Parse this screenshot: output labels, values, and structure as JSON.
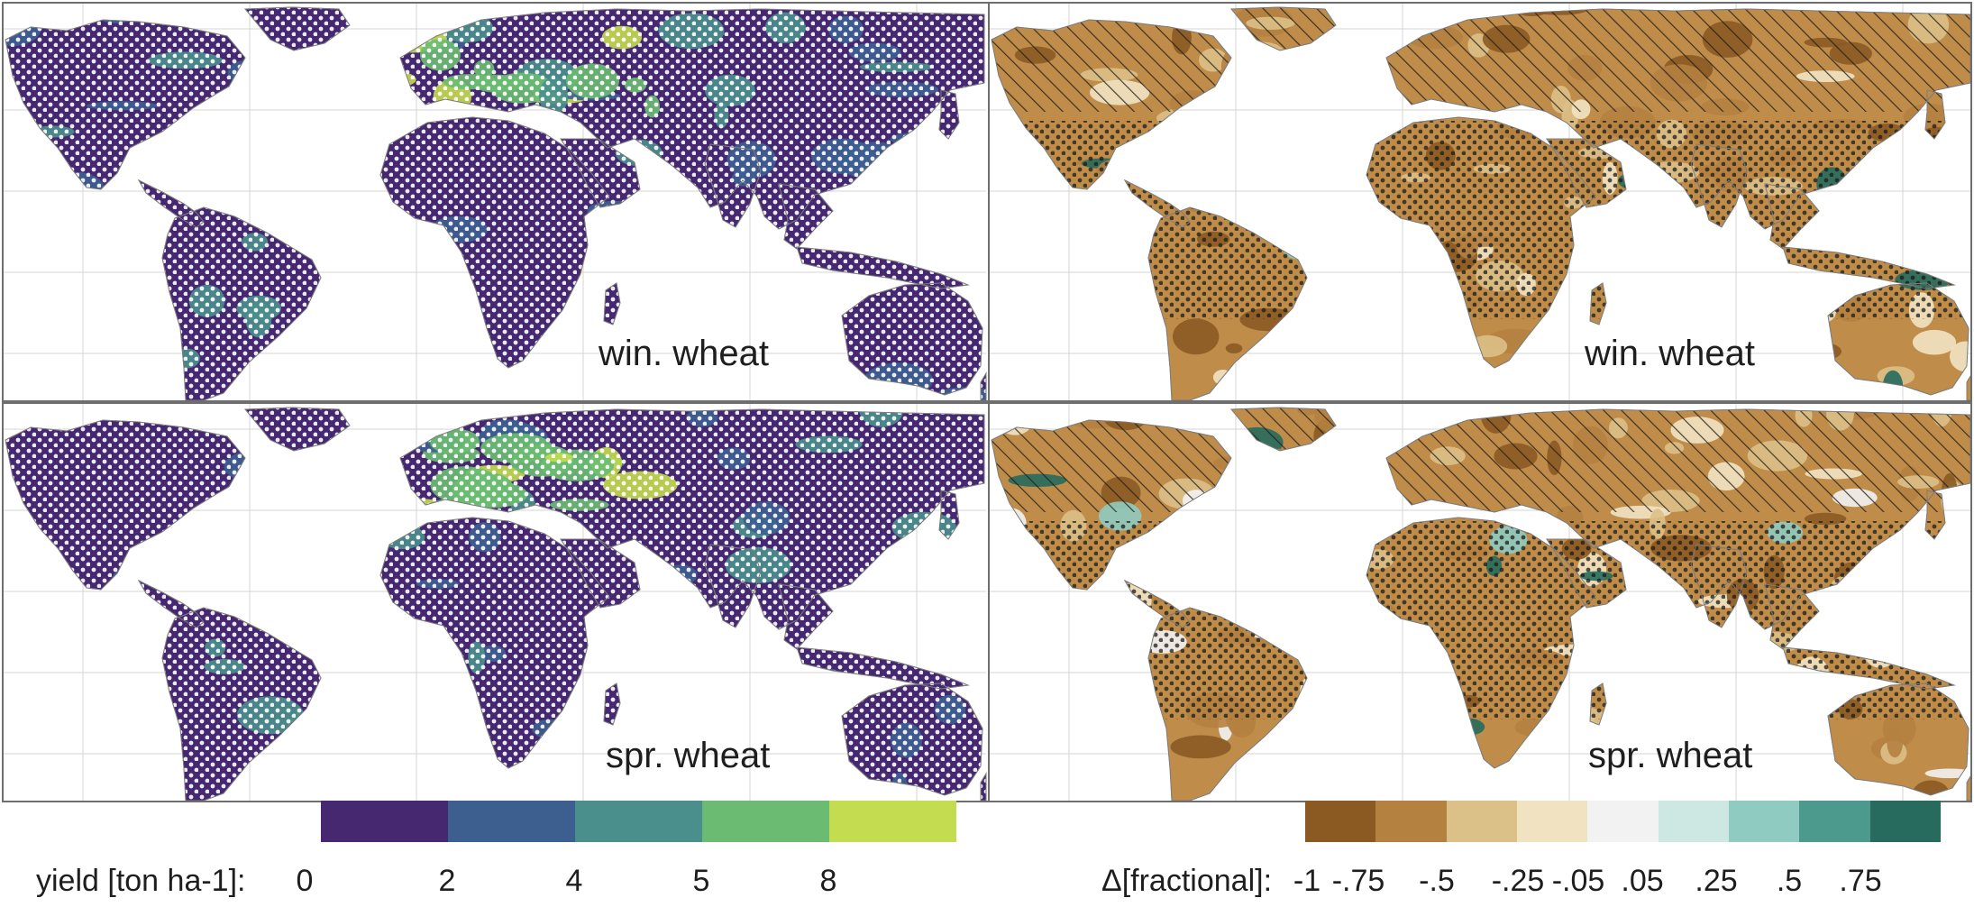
{
  "panels": [
    {
      "id": "yield-winter",
      "label": "win. wheat",
      "palette": "yield",
      "variant": 0
    },
    {
      "id": "delta-winter",
      "label": "win. wheat",
      "palette": "delta",
      "variant": 1
    },
    {
      "id": "yield-spring",
      "label": "spr. wheat",
      "palette": "yield",
      "variant": 2
    },
    {
      "id": "delta-spring",
      "label": "spr. wheat",
      "palette": "delta",
      "variant": 3
    }
  ],
  "legend_yield": {
    "label": "yield [ton ha-1]:",
    "ticks": [
      "0",
      "2",
      "4",
      "5",
      "8"
    ],
    "colors": [
      "#45286f",
      "#3d5f8f",
      "#4a8f8c",
      "#6cbb72",
      "#c4dc4f"
    ]
  },
  "legend_delta": {
    "label": "Δ[fractional]:",
    "ticks": [
      "-1",
      "-.75",
      "-.5",
      "-.25",
      "-.05",
      ".05",
      ".25",
      ".5",
      ".75"
    ],
    "colors": [
      "#8b5a23",
      "#b58140",
      "#dbc088",
      "#f1e3c2",
      "#f2f2f2",
      "#cde8e3",
      "#8fcbc0",
      "#4c9a8e",
      "#266b5e"
    ]
  },
  "colors": {
    "land_yield_base": "#45286f",
    "land_delta_base": "#bf8c49",
    "ocean": "#ffffff",
    "grid": "#d4d4d4",
    "border": "#6e6e6e"
  }
}
